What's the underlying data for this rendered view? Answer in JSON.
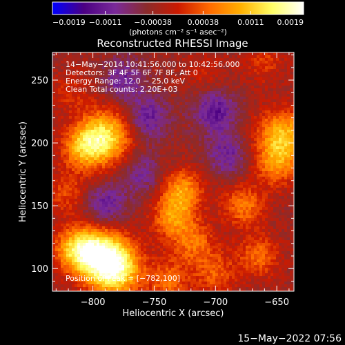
{
  "chart_data": {
    "type": "heatmap",
    "title": "Reconstructed RHESSI Image",
    "xlabel": "Heliocentric X (arcsec)",
    "ylabel": "Heliocentric Y (arcsec)",
    "xlim": [
      -833,
      -636
    ],
    "ylim": [
      82,
      272
    ],
    "x_ticks": [
      -800,
      -750,
      -700,
      -650
    ],
    "x_tick_labels": [
      "−800",
      "−750",
      "−700",
      "−650"
    ],
    "y_ticks": [
      100,
      150,
      200,
      250
    ],
    "y_tick_labels": [
      "100",
      "150",
      "200",
      "250"
    ],
    "colorbar": {
      "range": [
        -0.0019,
        0.0019
      ],
      "ticks": [
        -0.0019,
        -0.0011,
        -0.00038,
        0.00038,
        0.0011,
        0.0019
      ],
      "tick_labels": [
        "−0.0019",
        "−0.0011",
        "−0.00038",
        "0.00038",
        "0.0011",
        "0.0019"
      ],
      "unit_label": "(photons cm⁻² s⁻¹ asec⁻²)",
      "colors": [
        "#0000ff",
        "#4b0082",
        "#7a2a9a",
        "#8b2b2b",
        "#cc1a00",
        "#ff6a00",
        "#ffb000",
        "#ffff66",
        "#ffffff"
      ]
    },
    "info_lines": [
      "14−May−2014 10:41:56.000 to 10:42:56.000",
      "Detectors: 3F 4F 5F 6F 7F 8F, Att 0",
      "Energy Range: 12.0 − 25.0 keV",
      "Clean    Total counts: 2.20E+03"
    ],
    "peak_label": "Position of Peak = [−782,100]",
    "peak_position": [
      -782,
      100
    ],
    "blobs": [
      {
        "x": -782,
        "y": 100,
        "value": 0.0019
      },
      {
        "x": -797,
        "y": 113,
        "value": 0.0015
      },
      {
        "x": -815,
        "y": 115,
        "value": 0.0011
      },
      {
        "x": -790,
        "y": 205,
        "value": 0.0016
      },
      {
        "x": -808,
        "y": 196,
        "value": 0.0011
      },
      {
        "x": -645,
        "y": 205,
        "value": 0.0014
      },
      {
        "x": -651,
        "y": 182,
        "value": 0.0008
      },
      {
        "x": -727,
        "y": 162,
        "value": 0.0011
      },
      {
        "x": -735,
        "y": 140,
        "value": 0.001
      },
      {
        "x": -717,
        "y": 120,
        "value": 0.0008
      },
      {
        "x": -677,
        "y": 150,
        "value": 0.0009
      },
      {
        "x": -665,
        "y": 110,
        "value": 0.0008
      },
      {
        "x": -700,
        "y": 96,
        "value": 0.0007
      },
      {
        "x": -738,
        "y": 90,
        "value": 0.0008
      },
      {
        "x": -822,
        "y": 160,
        "value": 0.0006
      },
      {
        "x": -708,
        "y": 255,
        "value": 0.0003
      },
      {
        "x": -818,
        "y": 240,
        "value": 0.0004
      },
      {
        "x": -660,
        "y": 265,
        "value": 0.0005
      },
      {
        "x": -755,
        "y": 220,
        "value": -0.0008
      },
      {
        "x": -700,
        "y": 225,
        "value": -0.0009
      },
      {
        "x": -775,
        "y": 250,
        "value": -0.0007
      },
      {
        "x": -760,
        "y": 175,
        "value": -0.0006
      },
      {
        "x": -790,
        "y": 150,
        "value": -0.0008
      },
      {
        "x": -690,
        "y": 190,
        "value": -0.0007
      }
    ]
  },
  "footer": {
    "timestamp": "15−May−2022 07:56"
  }
}
